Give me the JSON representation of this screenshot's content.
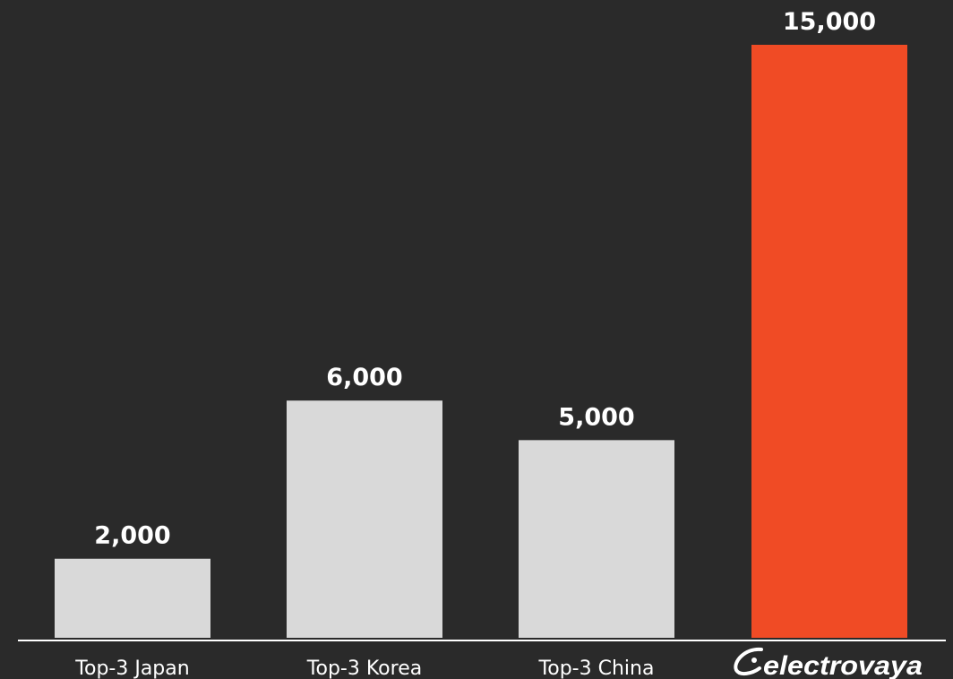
{
  "chart_data": {
    "type": "bar",
    "categories": [
      "Top-3 Japan",
      "Top-3 Korea",
      "Top-3 China",
      "electrovaya"
    ],
    "values": [
      2000,
      6000,
      5000,
      15000
    ],
    "value_labels": [
      "2,000",
      "6,000",
      "5,000",
      "15,000"
    ],
    "ylim": [
      0,
      15000
    ],
    "grid": false,
    "legend": "none",
    "colors": {
      "background": "#2a2a2a",
      "bar_default": "#d9d9d9",
      "bar_highlight": "#f04b25",
      "text": "#ffffff",
      "axis": "#ffffff"
    },
    "highlight_index": 3,
    "logo_category_index": 3
  }
}
